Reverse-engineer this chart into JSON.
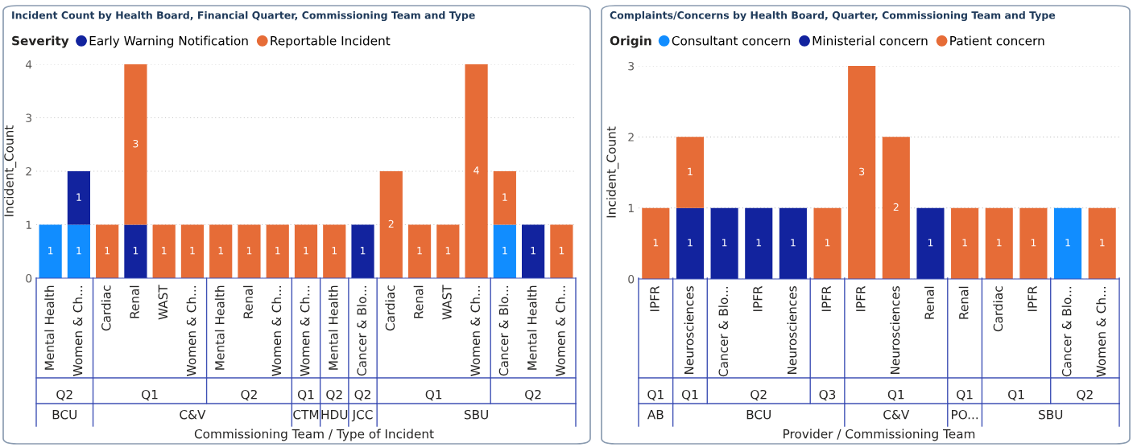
{
  "chart_data": [
    {
      "type": "bar",
      "title": "Incident Count by Health Board, Financial Quarter, Commissioning Team and Type",
      "legend_title": "Severity",
      "xlabel": "Commissioning Team / Type of Incident",
      "ylabel": "Incident_Count",
      "stacked": true,
      "data_labels": true,
      "grid": "y",
      "legend": "top left",
      "ylim": [
        0,
        4
      ],
      "yticks": [
        0,
        1,
        2,
        3,
        4
      ],
      "categories": [
        "Mental Health",
        "Women & Ch...",
        "Cardiac",
        "Renal",
        "WAST",
        "Women & Ch...",
        "Mental Health",
        "Renal",
        "Women & Ch...",
        "Women & Ch...",
        "Mental Health",
        "Cancer & Blo...",
        "Cardiac",
        "Renal",
        "WAST",
        "Women & Ch...",
        "Cancer & Blo...",
        "Mental Health",
        "Women & Ch..."
      ],
      "series": [
        {
          "color": "#118dff",
          "values": [
            1,
            1,
            null,
            null,
            null,
            null,
            null,
            null,
            null,
            null,
            null,
            null,
            null,
            null,
            null,
            null,
            1,
            null,
            null
          ]
        },
        {
          "name": "Early Warning Notification",
          "color": "#12239e",
          "values": [
            null,
            1,
            null,
            1,
            null,
            null,
            null,
            null,
            null,
            null,
            null,
            1,
            null,
            null,
            null,
            null,
            null,
            1,
            null
          ]
        },
        {
          "name": "Reportable Incident",
          "color": "#e66c37",
          "values": [
            null,
            null,
            1,
            3,
            1,
            1,
            1,
            1,
            1,
            1,
            1,
            null,
            2,
            1,
            1,
            4,
            1,
            null,
            1
          ]
        }
      ],
      "annotations": [
        "Q2",
        "Q1",
        "Q2",
        "Q1",
        "Q2",
        "Q2",
        "Q1",
        "Q2",
        "BCU",
        "C&V",
        "CTM",
        "HDU",
        "JCC",
        "SBU"
      ]
    },
    {
      "type": "bar",
      "title": "Complaints/Concerns by Health Board, Quarter, Commissioning Team and Type",
      "legend_title": "Origin",
      "xlabel": "Provider / Commissioning Team",
      "ylabel": "Incident_Count",
      "stacked": true,
      "data_labels": true,
      "grid": "y",
      "legend": "top left",
      "ylim": [
        0,
        3
      ],
      "yticks": [
        0,
        1,
        2,
        3
      ],
      "categories": [
        "IPFR",
        "Neurosciences",
        "Cancer & Blo...",
        "IPFR",
        "Neurosciences",
        "IPFR",
        "IPFR",
        "Neurosciences",
        "Renal",
        "Renal",
        "Cardiac",
        "IPFR",
        "Cancer & Blo...",
        "Women & Ch..."
      ],
      "series": [
        {
          "name": "Consultant concern",
          "color": "#118dff",
          "values": [
            null,
            null,
            null,
            null,
            null,
            null,
            null,
            null,
            null,
            null,
            null,
            null,
            1,
            null
          ]
        },
        {
          "name": "Ministerial concern",
          "color": "#12239e",
          "values": [
            null,
            1,
            1,
            1,
            1,
            null,
            null,
            null,
            1,
            null,
            null,
            null,
            null,
            null
          ]
        },
        {
          "name": "Patient concern",
          "color": "#e66c37",
          "values": [
            1,
            1,
            null,
            null,
            null,
            1,
            3,
            2,
            null,
            1,
            1,
            1,
            null,
            1
          ]
        }
      ],
      "annotations": [
        "Q1",
        "Q1",
        "Q2",
        "Q3",
        "Q1",
        "Q1",
        "Q1",
        "Q2",
        "AB",
        "BCU",
        "C&V",
        "PO...",
        "SBU"
      ]
    }
  ]
}
